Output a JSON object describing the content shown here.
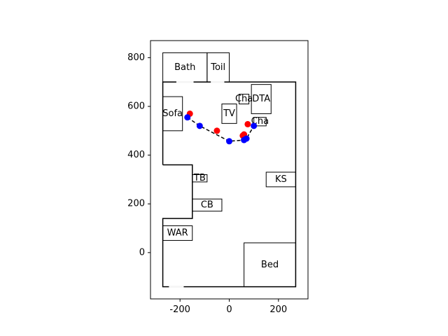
{
  "chart_data": {
    "type": "scatter",
    "title": "",
    "xlabel": "",
    "ylabel": "",
    "xlim": [
      -320,
      320
    ],
    "ylim": [
      -190,
      870
    ],
    "x_ticks": [
      -200,
      0,
      200
    ],
    "y_ticks": [
      0,
      200,
      400,
      600,
      800
    ],
    "walls": [
      [
        [
          -270,
          360
        ],
        [
          -270,
          700
        ],
        [
          270,
          700
        ],
        [
          270,
          -140
        ],
        [
          -270,
          -140
        ],
        [
          -270,
          140
        ],
        [
          -150,
          140
        ],
        [
          -150,
          360
        ],
        [
          -270,
          360
        ]
      ]
    ],
    "furniture": [
      {
        "name": "Bath",
        "x0": -270,
        "x1": -90,
        "y0": 700,
        "y1": 820
      },
      {
        "name": "Toil",
        "x0": -90,
        "x1": 0,
        "y0": 700,
        "y1": 820
      },
      {
        "name": "Sofa",
        "x0": -270,
        "x1": -190,
        "y0": 500,
        "y1": 640
      },
      {
        "name": "TV",
        "x0": -30,
        "x1": 30,
        "y0": 530,
        "y1": 610
      },
      {
        "name": "Cha",
        "x0": 40,
        "x1": 80,
        "y0": 610,
        "y1": 650
      },
      {
        "name": "DTA",
        "x0": 90,
        "x1": 170,
        "y0": 570,
        "y1": 690
      },
      {
        "name": "Cha",
        "x0": 100,
        "x1": 150,
        "y0": 520,
        "y1": 555
      },
      {
        "name": "TB",
        "x0": -150,
        "x1": -90,
        "y0": 290,
        "y1": 320
      },
      {
        "name": "KS",
        "x0": 150,
        "x1": 270,
        "y0": 270,
        "y1": 330
      },
      {
        "name": "CB",
        "x0": -150,
        "x1": -30,
        "y0": 170,
        "y1": 220
      },
      {
        "name": "WAR",
        "x0": -270,
        "x1": -150,
        "y0": 50,
        "y1": 110
      },
      {
        "name": "Bed",
        "x0": 60,
        "x1": 270,
        "y0": -140,
        "y1": 40
      }
    ],
    "doors": [
      {
        "x0": -215,
        "x1": -145,
        "y": 700
      },
      {
        "x0": -75,
        "x1": -20,
        "y": 700
      },
      {
        "x0": -245,
        "x1": -185,
        "y": -140
      }
    ],
    "path": {
      "x": [
        -170,
        -120,
        0,
        60,
        70,
        100
      ],
      "y": [
        555,
        520,
        457,
        462,
        468,
        520
      ]
    },
    "series": [
      {
        "name": "red",
        "color": "#ff0000",
        "x": [
          -160,
          -50,
          55,
          60,
          75
        ],
        "y": [
          570,
          500,
          480,
          485,
          527
        ]
      },
      {
        "name": "blue",
        "color": "#0000ff",
        "x": [
          -170,
          -120,
          0,
          60,
          70,
          100
        ],
        "y": [
          555,
          520,
          457,
          462,
          468,
          520
        ]
      }
    ]
  }
}
